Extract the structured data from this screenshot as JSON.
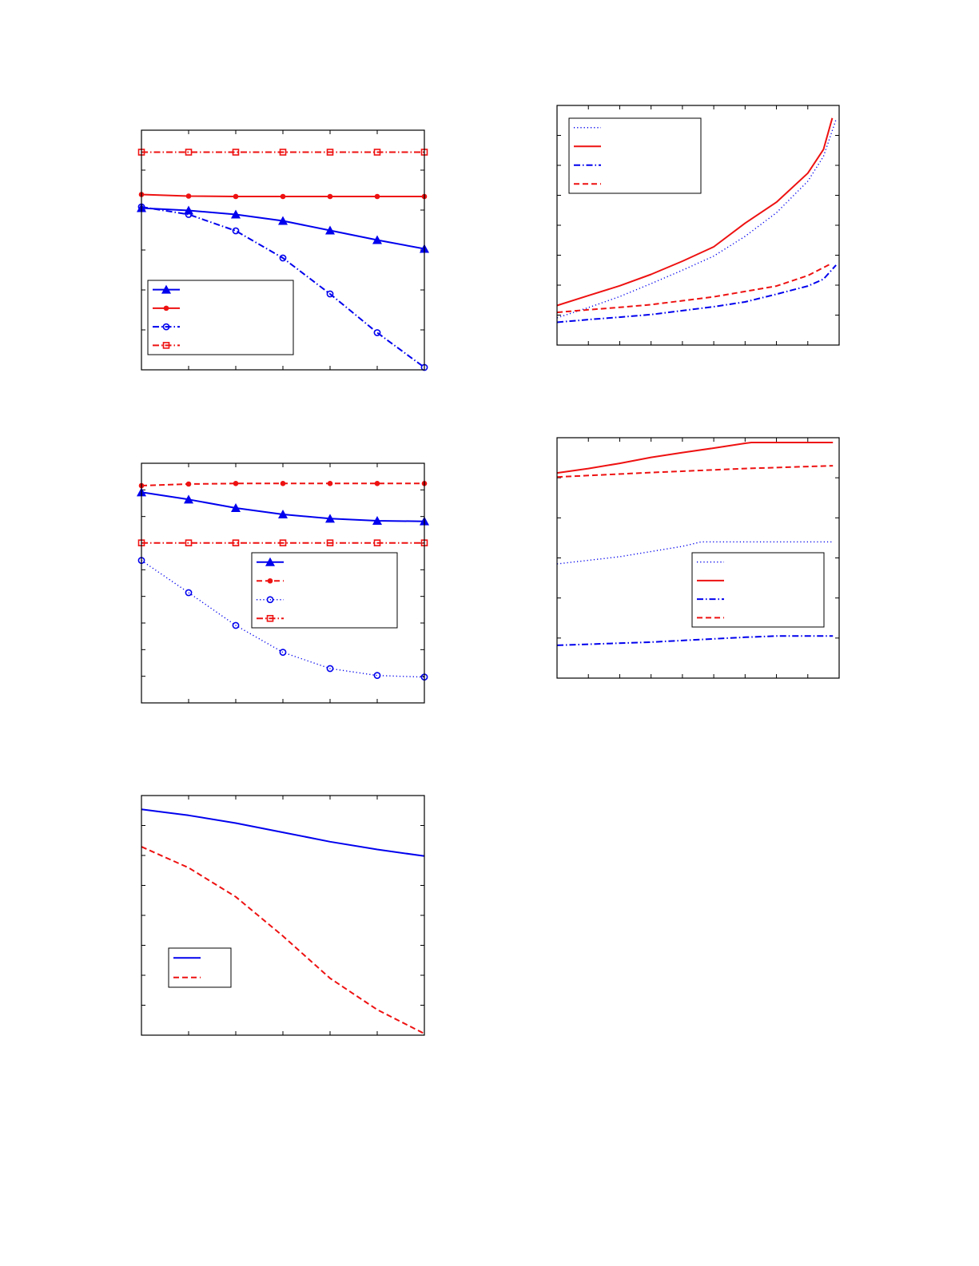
{
  "colors": {
    "blue": "#0000ee",
    "red": "#ee1111",
    "axis": "#000000"
  },
  "chart_data": [
    {
      "type": "line",
      "xlim": [
        0,
        6
      ],
      "ylim": [
        0,
        6
      ],
      "x_ticks": 7,
      "y_ticks": 7,
      "grid": false,
      "legend": "bottom-left",
      "series": [
        {
          "color": "blue",
          "style": "solid",
          "marker": "triangle",
          "points": [
            [
              0,
              4.05
            ],
            [
              1,
              3.99
            ],
            [
              2,
              3.89
            ],
            [
              3,
              3.73
            ],
            [
              4,
              3.49
            ],
            [
              5,
              3.25
            ],
            [
              6,
              3.03
            ]
          ]
        },
        {
          "color": "red",
          "style": "solid",
          "marker": "dot",
          "points": [
            [
              0,
              4.39
            ],
            [
              1,
              4.35
            ],
            [
              2,
              4.34
            ],
            [
              3,
              4.34
            ],
            [
              4,
              4.34
            ],
            [
              5,
              4.34
            ],
            [
              6,
              4.34
            ]
          ]
        },
        {
          "color": "blue",
          "style": "dashdot",
          "marker": "circle",
          "points": [
            [
              0,
              4.08
            ],
            [
              1,
              3.89
            ],
            [
              2,
              3.48
            ],
            [
              3,
              2.8
            ],
            [
              4,
              1.9
            ],
            [
              5,
              0.93
            ],
            [
              6,
              0.06
            ]
          ]
        },
        {
          "color": "red",
          "style": "dashdot",
          "marker": "square",
          "points": [
            [
              0,
              5.45
            ],
            [
              1,
              5.45
            ],
            [
              2,
              5.45
            ],
            [
              3,
              5.45
            ],
            [
              4,
              5.45
            ],
            [
              5,
              5.45
            ],
            [
              6,
              5.45
            ]
          ]
        }
      ]
    },
    {
      "type": "line",
      "xlim": [
        0,
        9
      ],
      "ylim": [
        0,
        8
      ],
      "x_ticks": 10,
      "y_ticks": 9,
      "grid": false,
      "legend": "top-left",
      "series": [
        {
          "color": "blue",
          "style": "dotted",
          "marker": "none",
          "points": [
            [
              0,
              0.91
            ],
            [
              1,
              1.25
            ],
            [
              2,
              1.62
            ],
            [
              3,
              2.05
            ],
            [
              4,
              2.5
            ],
            [
              5,
              2.97
            ],
            [
              6,
              3.63
            ],
            [
              7,
              4.42
            ],
            [
              8,
              5.47
            ],
            [
              8.5,
              6.3
            ],
            [
              8.9,
              7.53
            ]
          ]
        },
        {
          "color": "red",
          "style": "solid",
          "marker": "none",
          "points": [
            [
              0,
              1.32
            ],
            [
              1,
              1.65
            ],
            [
              2,
              1.98
            ],
            [
              3,
              2.36
            ],
            [
              4,
              2.8
            ],
            [
              5,
              3.28
            ],
            [
              6,
              4.07
            ],
            [
              7,
              4.77
            ],
            [
              8,
              5.74
            ],
            [
              8.5,
              6.53
            ],
            [
              8.78,
              7.58
            ]
          ]
        },
        {
          "color": "blue",
          "style": "dashdot",
          "marker": "none",
          "points": [
            [
              0,
              0.76
            ],
            [
              1,
              0.85
            ],
            [
              2,
              0.93
            ],
            [
              3,
              1.02
            ],
            [
              4,
              1.15
            ],
            [
              5,
              1.28
            ],
            [
              6,
              1.44
            ],
            [
              7,
              1.7
            ],
            [
              8,
              1.97
            ],
            [
              8.5,
              2.2
            ],
            [
              8.9,
              2.67
            ]
          ]
        },
        {
          "color": "red",
          "style": "dashed",
          "marker": "none",
          "points": [
            [
              0,
              1.09
            ],
            [
              1,
              1.18
            ],
            [
              2,
              1.26
            ],
            [
              3,
              1.35
            ],
            [
              4,
              1.48
            ],
            [
              5,
              1.61
            ],
            [
              6,
              1.79
            ],
            [
              7,
              1.97
            ],
            [
              8,
              2.32
            ],
            [
              8.73,
              2.71
            ]
          ]
        }
      ]
    },
    {
      "type": "line",
      "xlim": [
        0,
        6
      ],
      "ylim": [
        0,
        9
      ],
      "x_ticks": 7,
      "y_ticks": 10,
      "grid": false,
      "legend": "center-right",
      "series": [
        {
          "color": "blue",
          "style": "solid",
          "marker": "triangle",
          "points": [
            [
              0,
              7.91
            ],
            [
              1,
              7.64
            ],
            [
              2,
              7.32
            ],
            [
              3,
              7.08
            ],
            [
              4,
              6.92
            ],
            [
              5,
              6.84
            ],
            [
              6,
              6.82
            ]
          ]
        },
        {
          "color": "red",
          "style": "dashed",
          "marker": "dot",
          "points": [
            [
              0,
              8.16
            ],
            [
              1,
              8.22
            ],
            [
              2,
              8.24
            ],
            [
              3,
              8.24
            ],
            [
              4,
              8.24
            ],
            [
              5,
              8.24
            ],
            [
              6,
              8.24
            ]
          ]
        },
        {
          "color": "blue",
          "style": "dotted",
          "marker": "circle",
          "points": [
            [
              0,
              5.35
            ],
            [
              1,
              4.14
            ],
            [
              2,
              2.91
            ],
            [
              3,
              1.9
            ],
            [
              4,
              1.29
            ],
            [
              5,
              1.03
            ],
            [
              6,
              0.97
            ]
          ]
        },
        {
          "color": "red",
          "style": "dashdot",
          "marker": "square",
          "points": [
            [
              0,
              6.01
            ],
            [
              1,
              6.01
            ],
            [
              2,
              6.01
            ],
            [
              3,
              6.01
            ],
            [
              4,
              6.01
            ],
            [
              5,
              6.01
            ],
            [
              6,
              6.01
            ]
          ]
        }
      ]
    },
    {
      "type": "line",
      "xlim": [
        0,
        9
      ],
      "ylim": [
        0,
        6
      ],
      "x_ticks": 10,
      "y_ticks": 7,
      "grid": false,
      "legend": "center-right",
      "series": [
        {
          "color": "blue",
          "style": "dotted",
          "marker": "none",
          "points": [
            [
              0,
              2.85
            ],
            [
              2,
              3.03
            ],
            [
              4,
              3.29
            ],
            [
              4.6,
              3.4
            ],
            [
              8.8,
              3.4
            ]
          ]
        },
        {
          "color": "red",
          "style": "solid",
          "marker": "none",
          "points": [
            [
              0,
              5.12
            ],
            [
              1,
              5.23
            ],
            [
              2,
              5.36
            ],
            [
              3,
              5.51
            ],
            [
              4,
              5.63
            ],
            [
              5,
              5.74
            ],
            [
              6,
              5.86
            ],
            [
              6.2,
              5.88
            ],
            [
              8.8,
              5.88
            ]
          ]
        },
        {
          "color": "blue",
          "style": "dashdot",
          "marker": "none",
          "points": [
            [
              0,
              0.82
            ],
            [
              3,
              0.9
            ],
            [
              6,
              1.02
            ],
            [
              7,
              1.05
            ],
            [
              8.8,
              1.05
            ]
          ]
        },
        {
          "color": "red",
          "style": "dashed",
          "marker": "none",
          "points": [
            [
              0,
              5.02
            ],
            [
              3,
              5.13
            ],
            [
              6,
              5.23
            ],
            [
              8.8,
              5.3
            ]
          ]
        }
      ]
    },
    {
      "type": "line",
      "xlim": [
        0,
        6
      ],
      "ylim": [
        0,
        8
      ],
      "x_ticks": 7,
      "y_ticks": 9,
      "grid": false,
      "legend": "bottom-left",
      "series": [
        {
          "color": "blue",
          "style": "solid",
          "marker": "none",
          "points": [
            [
              0,
              7.54
            ],
            [
              1,
              7.34
            ],
            [
              2,
              7.08
            ],
            [
              3,
              6.77
            ],
            [
              4,
              6.46
            ],
            [
              5,
              6.2
            ],
            [
              6,
              5.98
            ]
          ]
        },
        {
          "color": "red",
          "style": "dashed",
          "marker": "none",
          "points": [
            [
              0,
              6.29
            ],
            [
              1,
              5.59
            ],
            [
              2,
              4.62
            ],
            [
              3,
              3.31
            ],
            [
              4,
              1.9
            ],
            [
              5,
              0.85
            ],
            [
              6,
              0.05
            ]
          ]
        }
      ]
    }
  ]
}
